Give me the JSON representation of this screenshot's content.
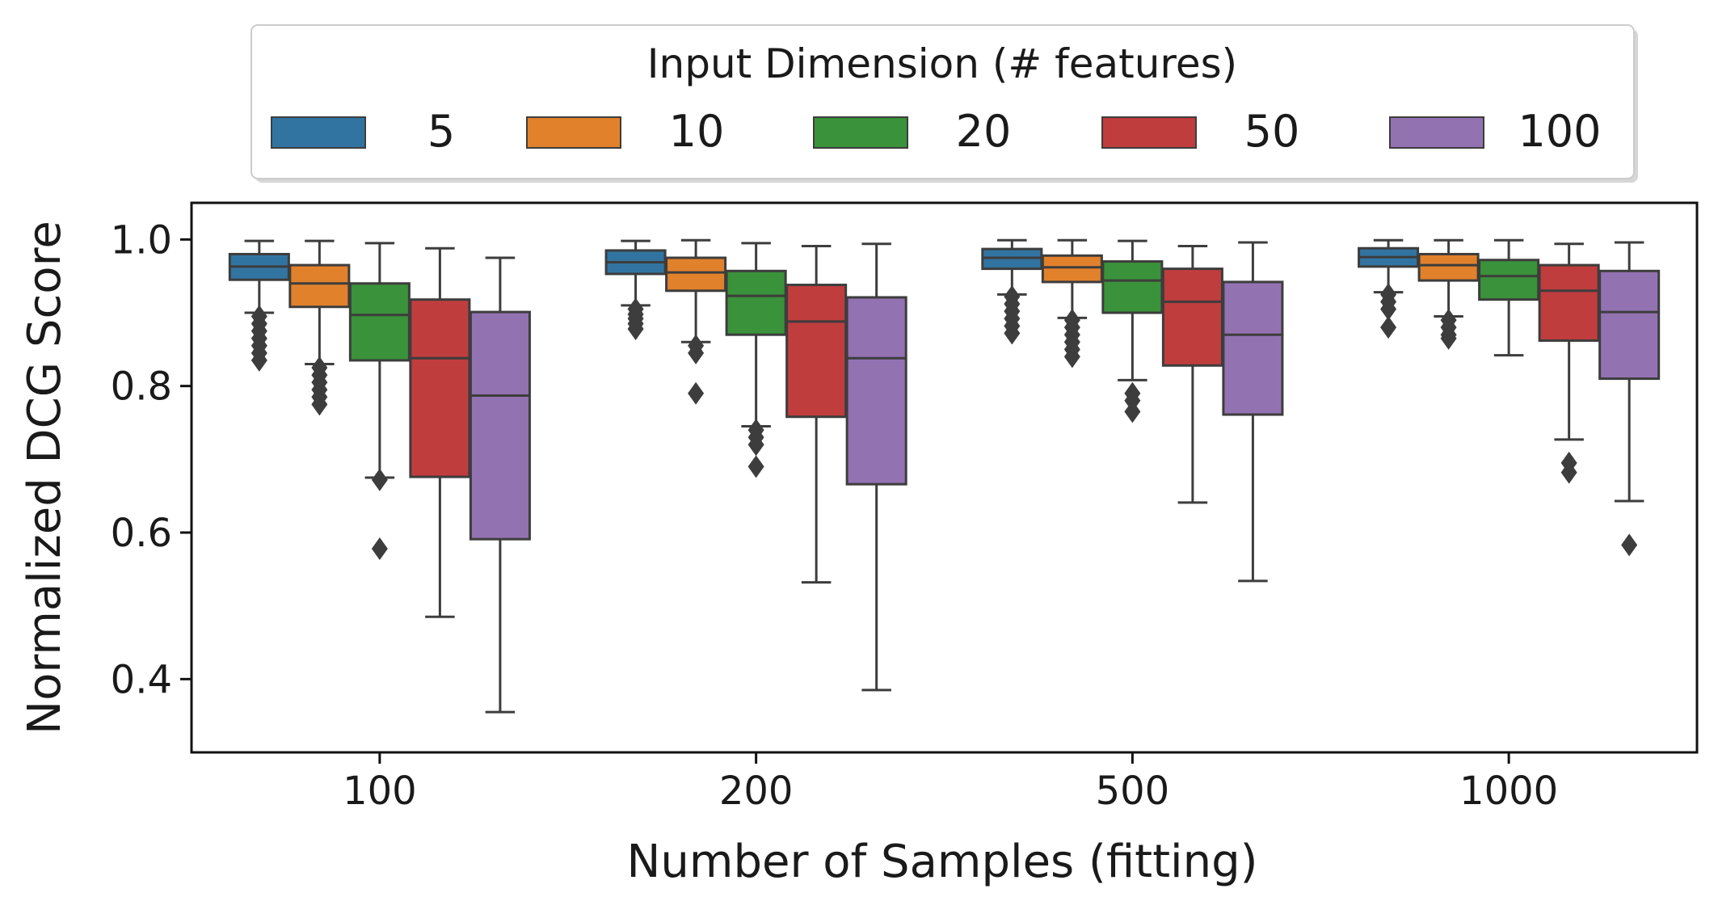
{
  "chart_data": {
    "type": "boxplot",
    "title": "",
    "xlabel": "Number of Samples (fitting)",
    "ylabel": "Normalized DCG Score",
    "categories": [
      "100",
      "200",
      "500",
      "1000"
    ],
    "ylim": [
      0.3,
      1.05
    ],
    "yticks": [
      0.4,
      0.6,
      0.8,
      1.0
    ],
    "ytick_labels": [
      "0.4",
      "0.6",
      "0.8",
      "1.0"
    ],
    "grid": false,
    "legend": {
      "title": "Input Dimension (# features)",
      "placement": "top-center",
      "entries": [
        "5",
        "10",
        "20",
        "50",
        "100"
      ]
    },
    "series": [
      {
        "name": "5",
        "color": "#3274a1",
        "boxes": [
          {
            "category": "100",
            "whisker_low": 0.9,
            "q1": 0.945,
            "median": 0.963,
            "q3": 0.98,
            "whisker_high": 0.998,
            "outliers": [
              0.895,
              0.885,
              0.875,
              0.865,
              0.855,
              0.845,
              0.835
            ]
          },
          {
            "category": "200",
            "whisker_low": 0.91,
            "q1": 0.953,
            "median": 0.969,
            "q3": 0.985,
            "whisker_high": 0.998,
            "outliers": [
              0.905,
              0.898,
              0.892,
              0.885,
              0.878
            ]
          },
          {
            "category": "500",
            "whisker_low": 0.925,
            "q1": 0.96,
            "median": 0.975,
            "q3": 0.987,
            "whisker_high": 0.999,
            "outliers": [
              0.922,
              0.912,
              0.902,
              0.892,
              0.882,
              0.872
            ]
          },
          {
            "category": "1000",
            "whisker_low": 0.928,
            "q1": 0.963,
            "median": 0.976,
            "q3": 0.988,
            "whisker_high": 0.999,
            "outliers": [
              0.925,
              0.915,
              0.905,
              0.88
            ]
          }
        ]
      },
      {
        "name": "10",
        "color": "#e1812c",
        "boxes": [
          {
            "category": "100",
            "whisker_low": 0.83,
            "q1": 0.908,
            "median": 0.94,
            "q3": 0.965,
            "whisker_high": 0.998,
            "outliers": [
              0.825,
              0.815,
              0.805,
              0.795,
              0.785,
              0.775
            ]
          },
          {
            "category": "200",
            "whisker_low": 0.86,
            "q1": 0.93,
            "median": 0.955,
            "q3": 0.975,
            "whisker_high": 0.999,
            "outliers": [
              0.855,
              0.845,
              0.79
            ]
          },
          {
            "category": "500",
            "whisker_low": 0.893,
            "q1": 0.942,
            "median": 0.962,
            "q3": 0.978,
            "whisker_high": 0.999,
            "outliers": [
              0.89,
              0.88,
              0.87,
              0.86,
              0.85,
              0.84
            ]
          },
          {
            "category": "1000",
            "whisker_low": 0.895,
            "q1": 0.944,
            "median": 0.965,
            "q3": 0.98,
            "whisker_high": 0.999,
            "outliers": [
              0.89,
              0.88,
              0.87,
              0.865
            ]
          }
        ]
      },
      {
        "name": "20",
        "color": "#3a923a",
        "boxes": [
          {
            "category": "100",
            "whisker_low": 0.675,
            "q1": 0.835,
            "median": 0.897,
            "q3": 0.94,
            "whisker_high": 0.995,
            "outliers": [
              0.672,
              0.578
            ]
          },
          {
            "category": "200",
            "whisker_low": 0.745,
            "q1": 0.87,
            "median": 0.923,
            "q3": 0.957,
            "whisker_high": 0.995,
            "outliers": [
              0.74,
              0.73,
              0.72,
              0.69
            ]
          },
          {
            "category": "500",
            "whisker_low": 0.808,
            "q1": 0.9,
            "median": 0.944,
            "q3": 0.97,
            "whisker_high": 0.998,
            "outliers": [
              0.79,
              0.78,
              0.765
            ]
          },
          {
            "category": "1000",
            "whisker_low": 0.842,
            "q1": 0.918,
            "median": 0.95,
            "q3": 0.972,
            "whisker_high": 0.999,
            "outliers": []
          }
        ]
      },
      {
        "name": "50",
        "color": "#c03d3e",
        "boxes": [
          {
            "category": "100",
            "whisker_low": 0.485,
            "q1": 0.676,
            "median": 0.838,
            "q3": 0.918,
            "whisker_high": 0.988,
            "outliers": []
          },
          {
            "category": "200",
            "whisker_low": 0.532,
            "q1": 0.758,
            "median": 0.888,
            "q3": 0.938,
            "whisker_high": 0.991,
            "outliers": []
          },
          {
            "category": "500",
            "whisker_low": 0.641,
            "q1": 0.828,
            "median": 0.915,
            "q3": 0.96,
            "whisker_high": 0.991,
            "outliers": []
          },
          {
            "category": "1000",
            "whisker_low": 0.727,
            "q1": 0.862,
            "median": 0.93,
            "q3": 0.965,
            "whisker_high": 0.994,
            "outliers": [
              0.695,
              0.682
            ]
          }
        ]
      },
      {
        "name": "100",
        "color": "#9372b2",
        "boxes": [
          {
            "category": "100",
            "whisker_low": 0.355,
            "q1": 0.591,
            "median": 0.787,
            "q3": 0.901,
            "whisker_high": 0.975,
            "outliers": []
          },
          {
            "category": "200",
            "whisker_low": 0.385,
            "q1": 0.666,
            "median": 0.838,
            "q3": 0.921,
            "whisker_high": 0.994,
            "outliers": []
          },
          {
            "category": "500",
            "whisker_low": 0.534,
            "q1": 0.761,
            "median": 0.87,
            "q3": 0.942,
            "whisker_high": 0.996,
            "outliers": []
          },
          {
            "category": "1000",
            "whisker_low": 0.643,
            "q1": 0.81,
            "median": 0.901,
            "q3": 0.957,
            "whisker_high": 0.996,
            "outliers": [
              0.583
            ]
          }
        ]
      }
    ]
  }
}
